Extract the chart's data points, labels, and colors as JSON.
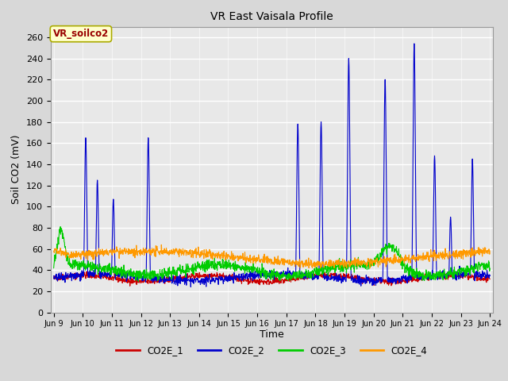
{
  "title": "VR East Vaisala Profile",
  "ylabel": "Soil CO2 (mV)",
  "xlabel": "Time",
  "annotation": "VR_soilco2",
  "ylim": [
    0,
    270
  ],
  "yticks": [
    0,
    20,
    40,
    60,
    80,
    100,
    120,
    140,
    160,
    180,
    200,
    220,
    240,
    260
  ],
  "xtick_labels": [
    "Jun 9",
    "Jun 10",
    "Jun 11",
    "Jun 12",
    "Jun 13",
    "Jun 14",
    "Jun 15",
    "Jun 16",
    "Jun 17",
    "Jun 18",
    "Jun 19",
    "Jun 20",
    "Jun 21",
    "Jun 22",
    "Jun 23",
    "Jun 24"
  ],
  "colors": {
    "CO2E_1": "#cc0000",
    "CO2E_2": "#0000cc",
    "CO2E_3": "#00cc00",
    "CO2E_4": "#ff9900"
  },
  "bg_color": "#d8d8d8",
  "plot_bg": "#e8e8e8",
  "linewidth": 0.8,
  "legend_colors": [
    "#cc0000",
    "#0000cc",
    "#00cc00",
    "#ff9900"
  ],
  "legend_labels": [
    "CO2E_1",
    "CO2E_2",
    "CO2E_3",
    "CO2E_4"
  ],
  "spike_positions_co2e2": [
    1.1,
    1.5,
    2.05,
    3.25,
    8.4,
    9.2,
    10.15,
    11.4,
    12.4,
    13.1,
    13.65,
    14.4
  ],
  "spike_heights_co2e2": [
    165,
    125,
    107,
    165,
    178,
    180,
    240,
    220,
    254,
    148,
    90,
    145
  ]
}
